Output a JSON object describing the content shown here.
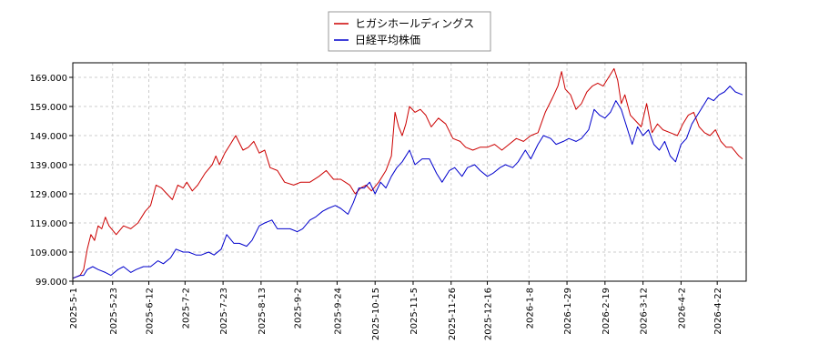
{
  "chart_data": {
    "type": "line",
    "title": "",
    "xlabel": "",
    "ylabel": "",
    "ylim": [
      99.0,
      174.0
    ],
    "y_ticks": [
      "99.000",
      "109.000",
      "119.000",
      "129.000",
      "139.000",
      "149.000",
      "159.000",
      "169.000"
    ],
    "y_tick_values": [
      99,
      109,
      119,
      129,
      139,
      149,
      159,
      169
    ],
    "x_range": [
      "2025-05-01",
      "2026-05-08"
    ],
    "x_ticks": [
      "2025-5-1",
      "2025-5-23",
      "2025-6-12",
      "2025-7-2",
      "2025-7-23",
      "2025-8-13",
      "2025-9-2",
      "2025-9-24",
      "2025-10-15",
      "2025-11-5",
      "2025-11-26",
      "2025-12-16",
      "2026-1-8",
      "2026-1-29",
      "2026-2-19",
      "2026-3-12",
      "2026-4-2",
      "2026-4-22"
    ],
    "x_tick_dates": [
      "2025-05-01",
      "2025-05-23",
      "2025-06-12",
      "2025-07-02",
      "2025-07-23",
      "2025-08-13",
      "2025-09-02",
      "2025-09-24",
      "2025-10-15",
      "2025-11-05",
      "2025-11-26",
      "2025-12-16",
      "2026-01-08",
      "2026-01-29",
      "2026-02-19",
      "2026-03-12",
      "2026-04-02",
      "2026-04-22"
    ],
    "grid": true,
    "legend_position": "top-center",
    "series": [
      {
        "name": "ヒガシホールディングス",
        "color": "#cc0000",
        "points": [
          [
            "2025-05-01",
            100
          ],
          [
            "2025-05-05",
            101
          ],
          [
            "2025-05-07",
            103
          ],
          [
            "2025-05-09",
            110
          ],
          [
            "2025-05-11",
            115
          ],
          [
            "2025-05-13",
            113
          ],
          [
            "2025-05-15",
            118
          ],
          [
            "2025-05-17",
            117
          ],
          [
            "2025-05-19",
            121
          ],
          [
            "2025-05-21",
            118
          ],
          [
            "2025-05-25",
            115
          ],
          [
            "2025-05-29",
            118
          ],
          [
            "2025-06-02",
            117
          ],
          [
            "2025-06-06",
            119
          ],
          [
            "2025-06-10",
            123
          ],
          [
            "2025-06-13",
            125
          ],
          [
            "2025-06-16",
            132
          ],
          [
            "2025-06-19",
            131
          ],
          [
            "2025-06-22",
            129
          ],
          [
            "2025-06-25",
            127
          ],
          [
            "2025-06-28",
            132
          ],
          [
            "2025-07-01",
            131
          ],
          [
            "2025-07-03",
            133
          ],
          [
            "2025-07-06",
            130
          ],
          [
            "2025-07-09",
            132
          ],
          [
            "2025-07-13",
            136
          ],
          [
            "2025-07-17",
            139
          ],
          [
            "2025-07-19",
            142
          ],
          [
            "2025-07-21",
            139
          ],
          [
            "2025-07-24",
            143
          ],
          [
            "2025-07-27",
            146
          ],
          [
            "2025-07-30",
            149
          ],
          [
            "2025-08-03",
            144
          ],
          [
            "2025-08-06",
            145
          ],
          [
            "2025-08-09",
            147
          ],
          [
            "2025-08-12",
            143
          ],
          [
            "2025-08-15",
            144
          ],
          [
            "2025-08-18",
            138
          ],
          [
            "2025-08-22",
            137
          ],
          [
            "2025-08-26",
            133
          ],
          [
            "2025-08-31",
            132
          ],
          [
            "2025-09-04",
            133
          ],
          [
            "2025-09-09",
            133
          ],
          [
            "2025-09-14",
            135
          ],
          [
            "2025-09-18",
            137
          ],
          [
            "2025-09-22",
            134
          ],
          [
            "2025-09-26",
            134
          ],
          [
            "2025-10-01",
            132
          ],
          [
            "2025-10-04",
            129
          ],
          [
            "2025-10-07",
            131
          ],
          [
            "2025-10-10",
            132
          ],
          [
            "2025-10-13",
            130
          ],
          [
            "2025-10-17",
            133
          ],
          [
            "2025-10-21",
            137
          ],
          [
            "2025-10-24",
            142
          ],
          [
            "2025-10-26",
            157
          ],
          [
            "2025-10-28",
            152
          ],
          [
            "2025-10-30",
            149
          ],
          [
            "2025-11-01",
            153
          ],
          [
            "2025-11-03",
            159
          ],
          [
            "2025-11-06",
            157
          ],
          [
            "2025-11-09",
            158
          ],
          [
            "2025-11-12",
            156
          ],
          [
            "2025-11-15",
            152
          ],
          [
            "2025-11-19",
            155
          ],
          [
            "2025-11-23",
            153
          ],
          [
            "2025-11-27",
            148
          ],
          [
            "2025-12-01",
            147
          ],
          [
            "2025-12-04",
            145
          ],
          [
            "2025-12-08",
            144
          ],
          [
            "2025-12-12",
            145
          ],
          [
            "2025-12-16",
            145
          ],
          [
            "2025-12-20",
            146
          ],
          [
            "2025-12-24",
            144
          ],
          [
            "2025-12-28",
            146
          ],
          [
            "2026-01-01",
            148
          ],
          [
            "2026-01-05",
            147
          ],
          [
            "2026-01-09",
            149
          ],
          [
            "2026-01-13",
            150
          ],
          [
            "2026-01-17",
            157
          ],
          [
            "2026-01-21",
            162
          ],
          [
            "2026-01-24",
            166
          ],
          [
            "2026-01-26",
            171
          ],
          [
            "2026-01-28",
            165
          ],
          [
            "2026-01-31",
            163
          ],
          [
            "2026-02-03",
            158
          ],
          [
            "2026-02-06",
            160
          ],
          [
            "2026-02-09",
            164
          ],
          [
            "2026-02-12",
            166
          ],
          [
            "2026-02-15",
            167
          ],
          [
            "2026-02-18",
            166
          ],
          [
            "2026-02-21",
            169
          ],
          [
            "2026-02-24",
            172
          ],
          [
            "2026-02-26",
            168
          ],
          [
            "2026-02-28",
            160
          ],
          [
            "2026-03-02",
            163
          ],
          [
            "2026-03-05",
            156
          ],
          [
            "2026-03-08",
            154
          ],
          [
            "2026-03-11",
            152
          ],
          [
            "2026-03-14",
            160
          ],
          [
            "2026-03-17",
            150
          ],
          [
            "2026-03-20",
            153
          ],
          [
            "2026-03-23",
            151
          ],
          [
            "2026-03-27",
            150
          ],
          [
            "2026-03-31",
            149
          ],
          [
            "2026-04-03",
            153
          ],
          [
            "2026-04-06",
            156
          ],
          [
            "2026-04-09",
            157
          ],
          [
            "2026-04-12",
            152
          ],
          [
            "2026-04-15",
            150
          ],
          [
            "2026-04-18",
            149
          ],
          [
            "2026-04-21",
            151
          ],
          [
            "2026-04-24",
            147
          ],
          [
            "2026-04-27",
            145
          ],
          [
            "2026-04-30",
            145
          ],
          [
            "2026-05-04",
            142
          ],
          [
            "2026-05-06",
            141
          ]
        ]
      },
      {
        "name": "日経平均株価",
        "color": "#0000cc",
        "points": [
          [
            "2025-05-01",
            100
          ],
          [
            "2025-05-05",
            101
          ],
          [
            "2025-05-07",
            101
          ],
          [
            "2025-05-09",
            103
          ],
          [
            "2025-05-12",
            104
          ],
          [
            "2025-05-15",
            103
          ],
          [
            "2025-05-19",
            102
          ],
          [
            "2025-05-22",
            101
          ],
          [
            "2025-05-26",
            103
          ],
          [
            "2025-05-29",
            104
          ],
          [
            "2025-06-02",
            102
          ],
          [
            "2025-06-05",
            103
          ],
          [
            "2025-06-09",
            104
          ],
          [
            "2025-06-13",
            104
          ],
          [
            "2025-06-17",
            106
          ],
          [
            "2025-06-20",
            105
          ],
          [
            "2025-06-24",
            107
          ],
          [
            "2025-06-27",
            110
          ],
          [
            "2025-07-01",
            109
          ],
          [
            "2025-07-04",
            109
          ],
          [
            "2025-07-08",
            108
          ],
          [
            "2025-07-11",
            108
          ],
          [
            "2025-07-15",
            109
          ],
          [
            "2025-07-18",
            108
          ],
          [
            "2025-07-22",
            110
          ],
          [
            "2025-07-25",
            115
          ],
          [
            "2025-07-29",
            112
          ],
          [
            "2025-08-01",
            112
          ],
          [
            "2025-08-05",
            111
          ],
          [
            "2025-08-08",
            113
          ],
          [
            "2025-08-12",
            118
          ],
          [
            "2025-08-15",
            119
          ],
          [
            "2025-08-19",
            120
          ],
          [
            "2025-08-22",
            117
          ],
          [
            "2025-08-26",
            117
          ],
          [
            "2025-08-29",
            117
          ],
          [
            "2025-09-02",
            116
          ],
          [
            "2025-09-05",
            117
          ],
          [
            "2025-09-09",
            120
          ],
          [
            "2025-09-12",
            121
          ],
          [
            "2025-09-16",
            123
          ],
          [
            "2025-09-19",
            124
          ],
          [
            "2025-09-23",
            125
          ],
          [
            "2025-09-26",
            124
          ],
          [
            "2025-09-30",
            122
          ],
          [
            "2025-10-03",
            126
          ],
          [
            "2025-10-06",
            131
          ],
          [
            "2025-10-09",
            131
          ],
          [
            "2025-10-12",
            133
          ],
          [
            "2025-10-15",
            129
          ],
          [
            "2025-10-18",
            133
          ],
          [
            "2025-10-21",
            131
          ],
          [
            "2025-10-24",
            135
          ],
          [
            "2025-10-27",
            138
          ],
          [
            "2025-10-30",
            140
          ],
          [
            "2025-11-03",
            144
          ],
          [
            "2025-11-06",
            139
          ],
          [
            "2025-11-10",
            141
          ],
          [
            "2025-11-14",
            141
          ],
          [
            "2025-11-18",
            136
          ],
          [
            "2025-11-21",
            133
          ],
          [
            "2025-11-25",
            137
          ],
          [
            "2025-11-28",
            138
          ],
          [
            "2025-12-02",
            135
          ],
          [
            "2025-12-05",
            138
          ],
          [
            "2025-12-09",
            139
          ],
          [
            "2025-12-12",
            137
          ],
          [
            "2025-12-16",
            135
          ],
          [
            "2025-12-19",
            136
          ],
          [
            "2025-12-23",
            138
          ],
          [
            "2025-12-26",
            139
          ],
          [
            "2025-12-30",
            138
          ],
          [
            "2026-01-02",
            140
          ],
          [
            "2026-01-06",
            144
          ],
          [
            "2026-01-09",
            141
          ],
          [
            "2026-01-13",
            146
          ],
          [
            "2026-01-16",
            149
          ],
          [
            "2026-01-20",
            148
          ],
          [
            "2026-01-23",
            146
          ],
          [
            "2026-01-27",
            147
          ],
          [
            "2026-01-30",
            148
          ],
          [
            "2026-02-03",
            147
          ],
          [
            "2026-02-06",
            148
          ],
          [
            "2026-02-10",
            151
          ],
          [
            "2026-02-13",
            158
          ],
          [
            "2026-02-16",
            156
          ],
          [
            "2026-02-19",
            155
          ],
          [
            "2026-02-22",
            157
          ],
          [
            "2026-02-25",
            161
          ],
          [
            "2026-02-28",
            158
          ],
          [
            "2026-03-03",
            152
          ],
          [
            "2026-03-06",
            146
          ],
          [
            "2026-03-09",
            152
          ],
          [
            "2026-03-12",
            149
          ],
          [
            "2026-03-15",
            151
          ],
          [
            "2026-03-18",
            146
          ],
          [
            "2026-03-21",
            144
          ],
          [
            "2026-03-24",
            147
          ],
          [
            "2026-03-27",
            142
          ],
          [
            "2026-03-30",
            140
          ],
          [
            "2026-04-02",
            146
          ],
          [
            "2026-04-05",
            148
          ],
          [
            "2026-04-08",
            153
          ],
          [
            "2026-04-11",
            156
          ],
          [
            "2026-04-14",
            159
          ],
          [
            "2026-04-17",
            162
          ],
          [
            "2026-04-20",
            161
          ],
          [
            "2026-04-23",
            163
          ],
          [
            "2026-04-26",
            164
          ],
          [
            "2026-04-29",
            166
          ],
          [
            "2026-05-02",
            164
          ],
          [
            "2026-05-06",
            163
          ]
        ]
      }
    ]
  }
}
